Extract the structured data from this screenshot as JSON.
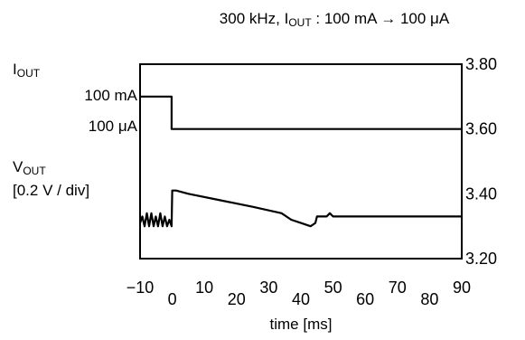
{
  "chart_data": {
    "type": "line",
    "title": {
      "prefix": "300 kHz, I",
      "sub": "OUT",
      "suffix": " : 100 mA → 100 μA"
    },
    "xlabel": "time [ms]",
    "xlim": [
      -10,
      90
    ],
    "x_ticks": [
      "−10",
      "0",
      "10",
      "20",
      "30",
      "40",
      "50",
      "60",
      "70",
      "80",
      "90"
    ],
    "y_right_ticks": [
      "3.80",
      "3.60",
      "3.40",
      "3.20"
    ],
    "y_right_lim": [
      3.2,
      3.8
    ],
    "iout_label": {
      "main": "I",
      "sub": "OUT"
    },
    "iout_levels": [
      "100 mA",
      "100 μA"
    ],
    "vout_label": {
      "main": "V",
      "sub": "OUT",
      "scale": "[0.2 V / div]"
    },
    "series": [
      {
        "role": "iout",
        "points": [
          [
            -10,
            3.7
          ],
          [
            -0.2,
            3.7
          ],
          [
            -0.2,
            3.6
          ],
          [
            90,
            3.6
          ]
        ]
      },
      {
        "role": "vout",
        "points": [
          [
            -10,
            3.31
          ],
          [
            -9.3,
            3.33
          ],
          [
            -8.6,
            3.3
          ],
          [
            -7.9,
            3.34
          ],
          [
            -7.2,
            3.3
          ],
          [
            -6.5,
            3.34
          ],
          [
            -5.8,
            3.3
          ],
          [
            -5.1,
            3.33
          ],
          [
            -4.4,
            3.3
          ],
          [
            -3.7,
            3.34
          ],
          [
            -3.0,
            3.3
          ],
          [
            -2.3,
            3.33
          ],
          [
            -1.6,
            3.3
          ],
          [
            -0.9,
            3.32
          ],
          [
            -0.2,
            3.3
          ],
          [
            0,
            3.41
          ],
          [
            1.2,
            3.41
          ],
          [
            5,
            3.4
          ],
          [
            15,
            3.38
          ],
          [
            25,
            3.36
          ],
          [
            34,
            3.34
          ],
          [
            37,
            3.32
          ],
          [
            40,
            3.31
          ],
          [
            43,
            3.3
          ],
          [
            44.5,
            3.31
          ],
          [
            45,
            3.33
          ],
          [
            46,
            3.33
          ],
          [
            48,
            3.33
          ],
          [
            49,
            3.34
          ],
          [
            50,
            3.33
          ],
          [
            52,
            3.33
          ],
          [
            90,
            3.33
          ]
        ]
      }
    ]
  }
}
